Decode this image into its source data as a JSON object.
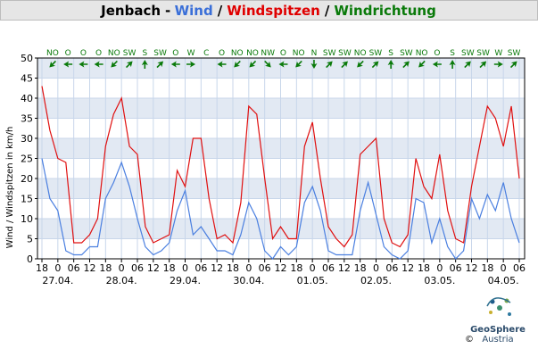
{
  "chart_data": {
    "type": "line",
    "title_parts": [
      {
        "text": "Jenbach",
        "color": "#000000"
      },
      {
        "text": "-",
        "color": "#000000"
      },
      {
        "text": "Wind",
        "color": "#3a6fd8"
      },
      {
        "text": "/",
        "color": "#000000"
      },
      {
        "text": "Windspitzen",
        "color": "#e00000"
      },
      {
        "text": "/",
        "color": "#000000"
      },
      {
        "text": "Windrichtung",
        "color": "#0a7a0a"
      }
    ],
    "ylabel": "Wind / Windspitzen in km/h",
    "xlim": [
      0,
      180
    ],
    "ylim": [
      0,
      50
    ],
    "yticks": [
      0,
      5,
      10,
      15,
      20,
      25,
      30,
      35,
      40,
      45,
      50
    ],
    "xticks": [
      {
        "value": 0,
        "label": "18"
      },
      {
        "value": 6,
        "label": "0"
      },
      {
        "value": 12,
        "label": "06"
      },
      {
        "value": 18,
        "label": "12"
      },
      {
        "value": 24,
        "label": "18"
      },
      {
        "value": 30,
        "label": "0"
      },
      {
        "value": 36,
        "label": "06"
      },
      {
        "value": 42,
        "label": "12"
      },
      {
        "value": 48,
        "label": "18"
      },
      {
        "value": 54,
        "label": "0"
      },
      {
        "value": 60,
        "label": "06"
      },
      {
        "value": 66,
        "label": "12"
      },
      {
        "value": 72,
        "label": "18"
      },
      {
        "value": 78,
        "label": "0"
      },
      {
        "value": 84,
        "label": "06"
      },
      {
        "value": 90,
        "label": "12"
      },
      {
        "value": 96,
        "label": "18"
      },
      {
        "value": 102,
        "label": "0"
      },
      {
        "value": 108,
        "label": "06"
      },
      {
        "value": 114,
        "label": "12"
      },
      {
        "value": 120,
        "label": "18"
      },
      {
        "value": 126,
        "label": "0"
      },
      {
        "value": 132,
        "label": "06"
      },
      {
        "value": 138,
        "label": "12"
      },
      {
        "value": 144,
        "label": "18"
      },
      {
        "value": 150,
        "label": "0"
      },
      {
        "value": 156,
        "label": "06"
      },
      {
        "value": 162,
        "label": "12"
      },
      {
        "value": 168,
        "label": "18"
      },
      {
        "value": 174,
        "label": "0"
      },
      {
        "value": 180,
        "label": "06"
      }
    ],
    "date_labels": [
      {
        "value": 6,
        "label": "27.04."
      },
      {
        "value": 30,
        "label": "28.04."
      },
      {
        "value": 54,
        "label": "29.04."
      },
      {
        "value": 78,
        "label": "30.04."
      },
      {
        "value": 102,
        "label": "01.05."
      },
      {
        "value": 126,
        "label": "02.05."
      },
      {
        "value": 150,
        "label": "03.05."
      },
      {
        "value": 174,
        "label": "04.05."
      }
    ],
    "grid": true,
    "x": [
      0,
      3,
      6,
      9,
      12,
      15,
      18,
      21,
      24,
      27,
      30,
      33,
      36,
      39,
      42,
      45,
      48,
      51,
      54,
      57,
      60,
      63,
      66,
      69,
      72,
      75,
      78,
      81,
      84,
      87,
      90,
      93,
      96,
      99,
      102,
      105,
      108,
      111,
      114,
      117,
      120,
      123,
      126,
      129,
      132,
      135,
      138,
      141,
      144,
      147,
      150,
      153,
      156,
      159,
      162,
      165,
      168,
      171,
      174,
      177,
      180
    ],
    "series": [
      {
        "name": "Wind",
        "color": "#4a7fe0",
        "values": [
          25,
          15,
          12,
          2,
          1,
          1,
          3,
          3,
          15,
          19,
          24,
          18,
          10,
          3,
          1,
          2,
          4,
          12,
          17,
          6,
          8,
          5,
          2,
          2,
          1,
          6,
          14,
          10,
          2,
          0,
          3,
          1,
          3,
          14,
          18,
          12,
          2,
          1,
          1,
          1,
          12,
          19,
          11,
          3,
          1,
          0,
          2,
          15,
          14,
          4,
          10,
          3,
          0,
          2,
          15,
          10,
          16,
          12,
          19,
          10,
          4
        ]
      },
      {
        "name": "Windspitzen",
        "color": "#e01010",
        "values": [
          43,
          32,
          25,
          24,
          4,
          4,
          6,
          10,
          28,
          36,
          40,
          28,
          26,
          8,
          4,
          5,
          6,
          22,
          18,
          30,
          30,
          15,
          5,
          6,
          4,
          14,
          38,
          36,
          20,
          5,
          8,
          5,
          5,
          28,
          34,
          20,
          8,
          5,
          3,
          6,
          26,
          28,
          30,
          10,
          4,
          3,
          6,
          25,
          18,
          15,
          26,
          12,
          5,
          4,
          18,
          28,
          38,
          35,
          28,
          38,
          20
        ]
      }
    ],
    "wind_direction": {
      "color": "#0a7a0a",
      "x": [
        4,
        9.8,
        15.6,
        21.4,
        27.2,
        33,
        38.8,
        44.6,
        50.4,
        56.2,
        62,
        67.8,
        73.6,
        79.4,
        85.2,
        91,
        96.8,
        102.6,
        108.4,
        114.2,
        120,
        125.8,
        131.6,
        137.4,
        143.2,
        149,
        154.8,
        160.6,
        166.4,
        172.2,
        178
      ],
      "labels": [
        "NO",
        "O",
        "O",
        "O",
        "NO",
        "SW",
        "S",
        "SW",
        "O",
        "W",
        "C",
        "O",
        "NO",
        "NO",
        "NW",
        "O",
        "NO",
        "N",
        "SW",
        "SW",
        "NO",
        "SW",
        "S",
        "SW",
        "NO",
        "O",
        "S",
        "SW",
        "SW",
        "W",
        "SW"
      ]
    },
    "logo": {
      "name": "GeoSphere",
      "sub": "Austria"
    },
    "copyright": "©"
  }
}
